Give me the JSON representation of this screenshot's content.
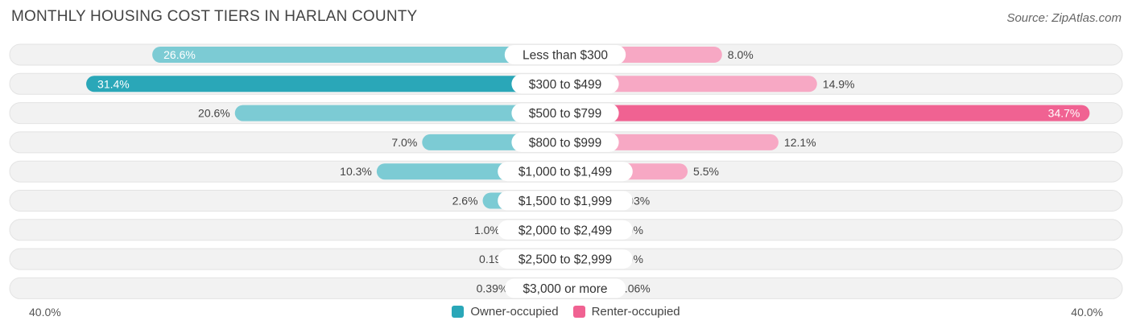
{
  "title": "MONTHLY HOUSING COST TIERS IN HARLAN COUNTY",
  "source": "Source: ZipAtlas.com",
  "axis": {
    "left_label": "40.0%",
    "right_label": "40.0%"
  },
  "colors": {
    "owner_strong": "#2aa7b8",
    "owner_light": "#7ccbd4",
    "renter_strong": "#f06292",
    "renter_light": "#f7a8c4",
    "track": "#f2f2f2"
  },
  "chart_data": {
    "type": "bar",
    "orientation": "horizontal-diverging",
    "xlim": [
      -40,
      40
    ],
    "categories": [
      "Less than $300",
      "$300 to $499",
      "$500 to $799",
      "$800 to $999",
      "$1,000 to $1,499",
      "$1,500 to $1,999",
      "$2,000 to $2,499",
      "$2,500 to $2,999",
      "$3,000 or more"
    ],
    "series": [
      {
        "name": "Owner-occupied",
        "values": [
          26.6,
          31.4,
          20.6,
          7.0,
          10.3,
          2.6,
          1.0,
          0.19,
          0.39
        ],
        "labels": [
          "26.6%",
          "31.4%",
          "20.6%",
          "7.0%",
          "10.3%",
          "2.6%",
          "1.0%",
          "0.19%",
          "0.39%"
        ]
      },
      {
        "name": "Renter-occupied",
        "values": [
          8.0,
          14.9,
          34.7,
          12.1,
          5.5,
          0.03,
          0.0,
          0.0,
          0.06
        ],
        "labels": [
          "8.0%",
          "14.9%",
          "34.7%",
          "12.1%",
          "5.5%",
          "0.03%",
          "0.0%",
          "0.0%",
          "0.06%"
        ]
      }
    ],
    "legend": [
      "Owner-occupied",
      "Renter-occupied"
    ],
    "legend_position": "bottom-center"
  }
}
